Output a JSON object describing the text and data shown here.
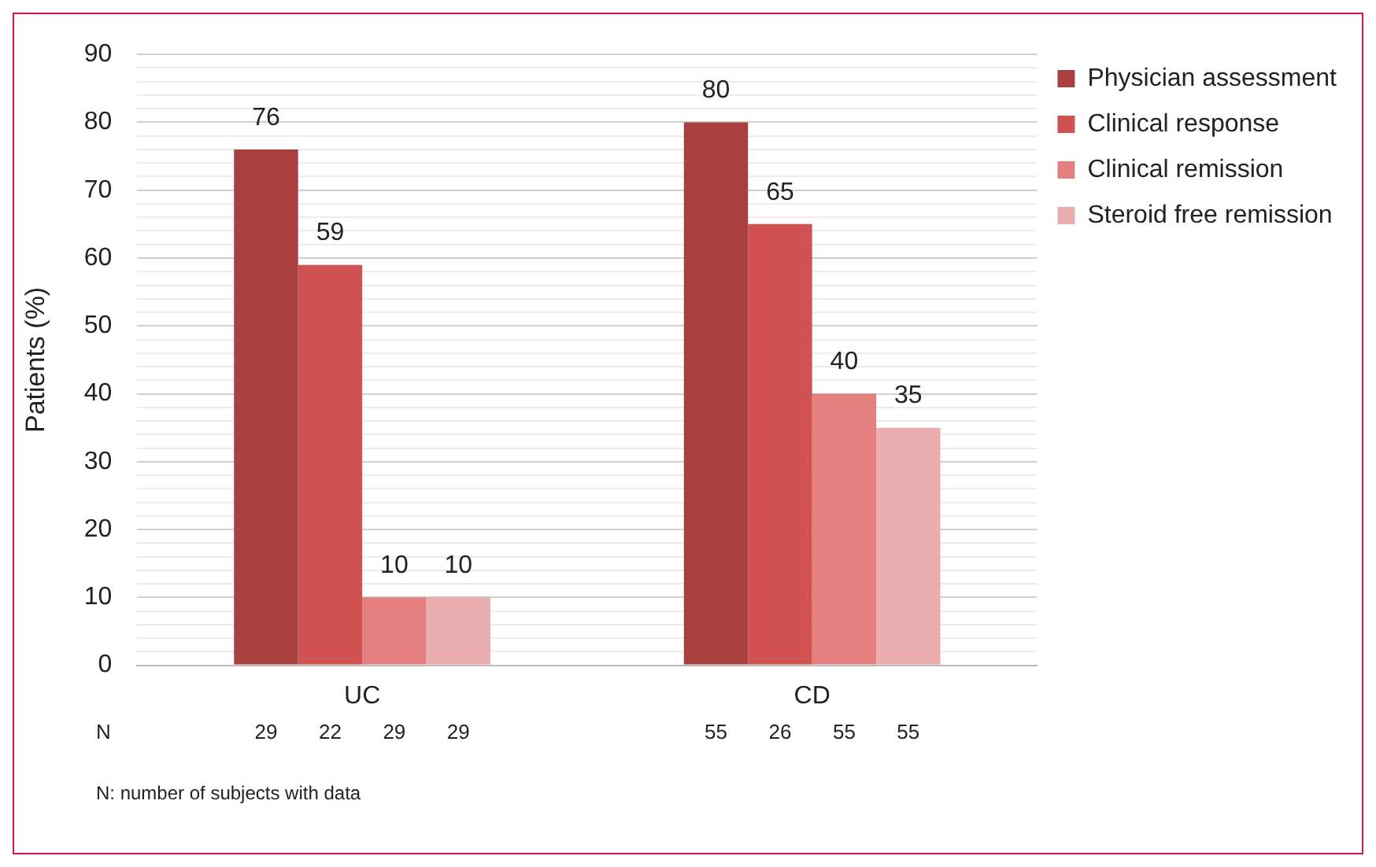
{
  "chart_data": {
    "type": "bar",
    "ylabel": "Patients (%)",
    "categories": [
      "UC",
      "CD"
    ],
    "series": [
      {
        "name": "Physician assessment",
        "color": "#a84040",
        "values": [
          76,
          80
        ]
      },
      {
        "name": "Clinical response",
        "color": "#d05252",
        "values": [
          59,
          65
        ]
      },
      {
        "name": "Clinical remission",
        "color": "#e37f7f",
        "values": [
          10,
          40
        ]
      },
      {
        "name": "Steroid free remission",
        "color": "#e9adad",
        "values": [
          10,
          35
        ]
      }
    ],
    "ylim": [
      0,
      90
    ],
    "yticks": [
      0,
      {
        "value": 2,
        "label": null
      },
      {
        "value": 4,
        "label": null
      },
      {
        "value": 6,
        "label": null
      },
      {
        "value": 8,
        "label": null
      },
      10,
      {
        "value": 12,
        "label": null
      },
      {
        "value": 14,
        "label": null
      },
      {
        "value": 16,
        "label": null
      },
      {
        "value": 18,
        "label": null
      },
      20,
      {
        "value": 22,
        "label": null
      },
      {
        "value": 24,
        "label": null
      },
      {
        "value": 26,
        "label": null
      },
      {
        "value": 28,
        "label": null
      },
      30,
      {
        "value": 32,
        "label": null
      },
      {
        "value": 34,
        "label": null
      },
      {
        "value": 36,
        "label": null
      },
      {
        "value": 38,
        "label": null
      },
      40,
      {
        "value": 42,
        "label": null
      },
      {
        "value": 44,
        "label": null
      },
      {
        "value": 46,
        "label": null
      },
      {
        "value": 48,
        "label": null
      },
      50,
      {
        "value": 52,
        "label": null
      },
      {
        "value": 54,
        "label": null
      },
      {
        "value": 56,
        "label": null
      },
      {
        "value": 58,
        "label": null
      },
      60,
      {
        "value": 62,
        "label": null
      },
      {
        "value": 64,
        "label": null
      },
      {
        "value": 66,
        "label": null
      },
      {
        "value": 68,
        "label": null
      },
      70,
      {
        "value": 72,
        "label": null
      },
      {
        "value": 74,
        "label": null
      },
      {
        "value": 76,
        "label": null
      },
      {
        "value": 78,
        "label": null
      },
      80,
      {
        "value": 82,
        "label": null
      },
      {
        "value": 84,
        "label": null
      },
      {
        "value": 86,
        "label": null
      },
      {
        "value": 88,
        "label": null
      },
      90
    ],
    "grid": "y",
    "legend": "right",
    "data_labels": true,
    "annotations": [
      "N",
      "29",
      "22",
      "29",
      "29",
      "55",
      "26",
      "55",
      "55",
      "N: number of subjects with data"
    ]
  }
}
